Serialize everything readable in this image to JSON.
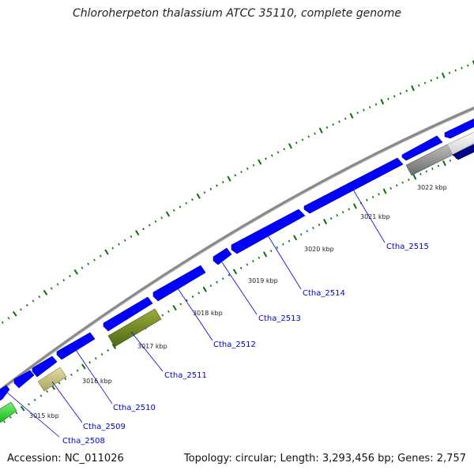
{
  "title": "Chloroherpeton thalassium ATCC 35110, complete genome",
  "footer": {
    "accession": "Accession: NC_011026",
    "summary": "Topology: circular; Length: 3,293,456 bp; Genes: 2,757"
  },
  "colors": {
    "backbone": "#8a8a8a",
    "forward_cds": "#0000ff",
    "tick": "#0a6e0a",
    "label": "#0000cc"
  },
  "kbp_marks": [
    {
      "label": "3015 kbp"
    },
    {
      "label": "3016 kbp"
    },
    {
      "label": "3017 kbp"
    },
    {
      "label": "3018 kbp"
    },
    {
      "label": "3019 kbp"
    },
    {
      "label": "3020 kbp"
    },
    {
      "label": "3021 kbp"
    },
    {
      "label": "3022 kbp"
    }
  ],
  "gene_labels": [
    {
      "name": "Ctha_2508"
    },
    {
      "name": "Ctha_2509"
    },
    {
      "name": "Ctha_2510"
    },
    {
      "name": "Ctha_2511"
    },
    {
      "name": "Ctha_2512"
    },
    {
      "name": "Ctha_2513"
    },
    {
      "name": "Ctha_2514"
    },
    {
      "name": "Ctha_2515"
    }
  ]
}
